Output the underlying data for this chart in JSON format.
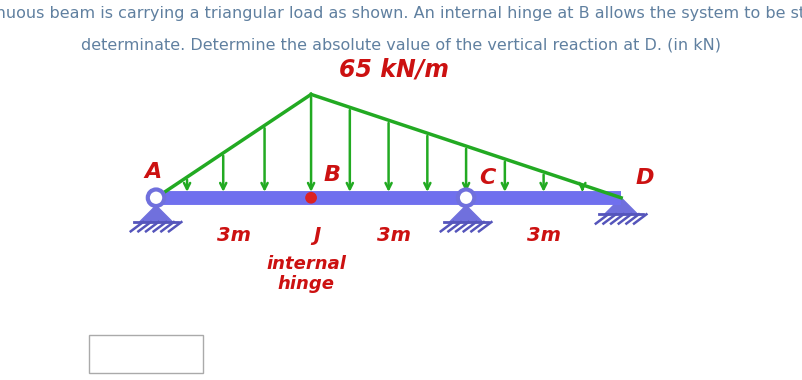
{
  "title_line1": "A continuous beam is carrying a triangular load as shown. An internal hinge at B allows the system to be statically",
  "title_line2": "determinate. Determine the absolute value of the vertical reaction at D. (in kN)",
  "title_color": "#6080a0",
  "title_fontsize": 11.5,
  "beam_color": "#7070ee",
  "beam_lw": 10,
  "load_color": "#22aa22",
  "load_label": "65 kN/m",
  "load_label_color": "#cc1111",
  "load_label_fontsize": 17,
  "arrow_color": "#22aa22",
  "support_color": "#7070dd",
  "hatch_color": "#5555bb",
  "label_color": "#cc1111",
  "label_fontsize": 16,
  "dim_fontsize": 14,
  "hinge_label": "internal\nhinge",
  "hinge_label_color": "#cc1111",
  "hinge_label_fontsize": 13,
  "figsize": [
    8.03,
    3.8
  ],
  "dpi": 100
}
